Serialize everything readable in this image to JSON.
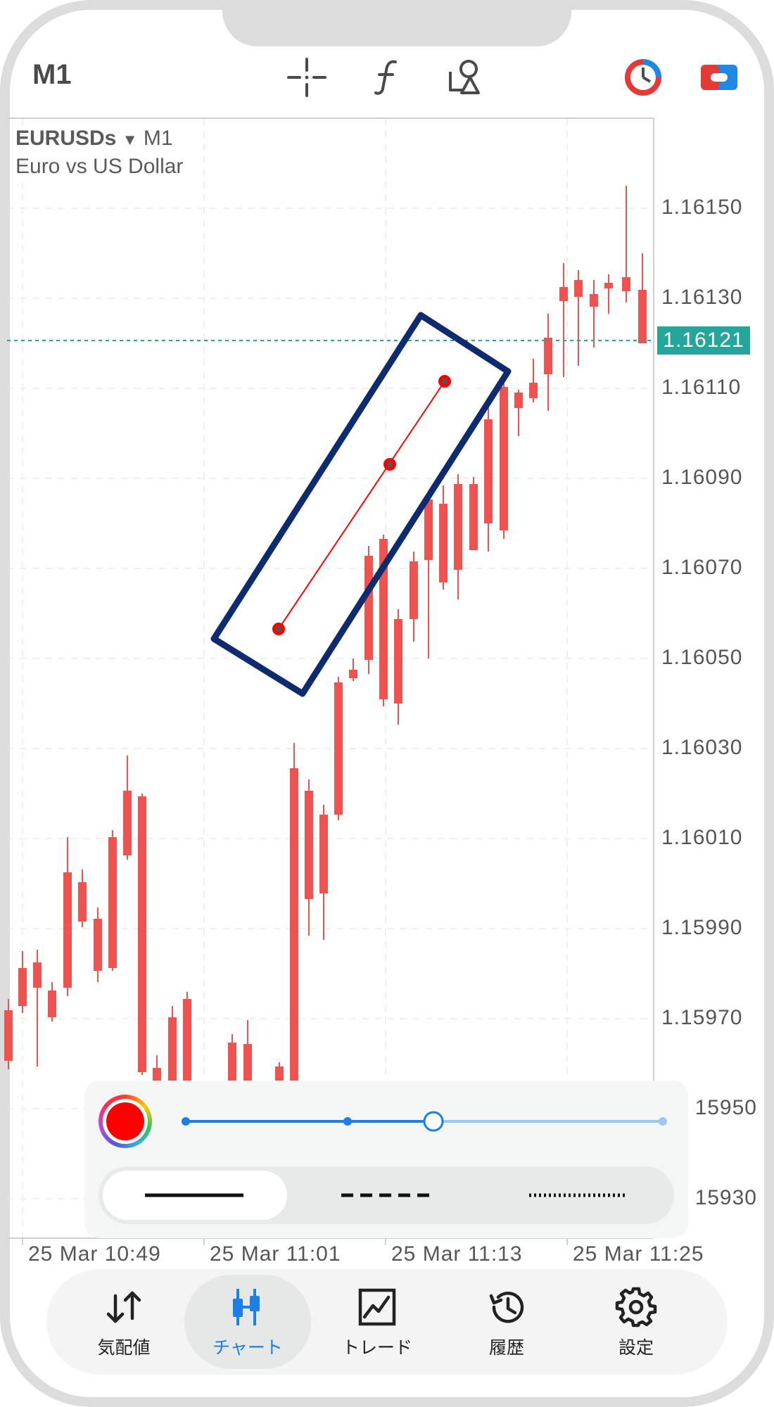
{
  "toolbar": {
    "timeframe": "M1",
    "icons": [
      "crosshair-icon",
      "function-icon",
      "objects-icon",
      "clock-icon",
      "trade-toggle-icon"
    ]
  },
  "chart": {
    "symbol": "EURUSDs",
    "symbol_timeframe": "M1",
    "description": "Euro vs US Dollar",
    "current_price": "1.16121",
    "y_labels": [
      "1.16150",
      "1.16130",
      "1.16110",
      "1.16090",
      "1.16070",
      "1.16050",
      "1.16030",
      "1.16010",
      "1.15990",
      "1.15970",
      "1.15950",
      "1.15930"
    ],
    "x_labels": [
      "25 Mar 10:49",
      "25 Mar 11:01",
      "25 Mar 11:13",
      "25 Mar 11:25"
    ],
    "colors": {
      "bull": "#26a69a",
      "bear": "#ef5350",
      "trendline": "#ff0000",
      "highlight": "#0d2b6e"
    }
  },
  "line_panel": {
    "color": "#ff0000",
    "width_level": 3,
    "width_levels": 4,
    "styles": [
      "solid",
      "dashed",
      "dotted"
    ],
    "selected_style": "solid"
  },
  "nav": {
    "items": [
      {
        "label": "気配値",
        "icon": "quotes-icon"
      },
      {
        "label": "チャート",
        "icon": "chart-icon"
      },
      {
        "label": "トレード",
        "icon": "trade-icon"
      },
      {
        "label": "履歴",
        "icon": "history-icon"
      },
      {
        "label": "設定",
        "icon": "settings-icon"
      }
    ],
    "active": "チャート"
  }
}
